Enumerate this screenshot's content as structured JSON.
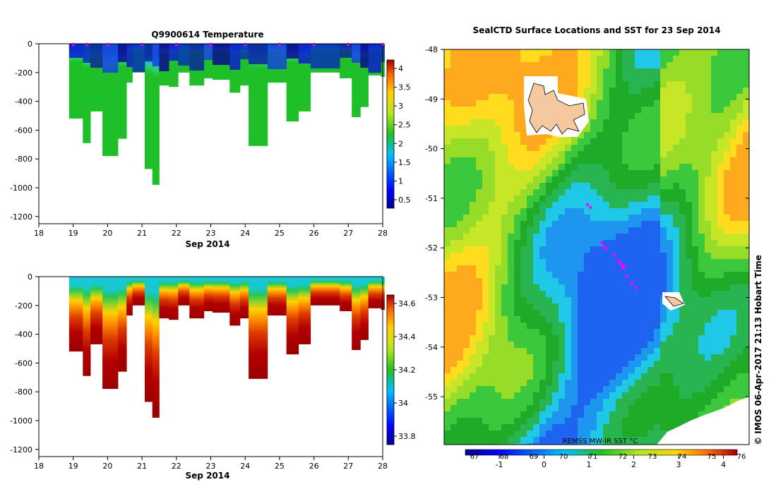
{
  "left_top": {
    "title": "Q9900614  Temperature",
    "xlabel": "Sep 2014",
    "x_ticks": [
      "18",
      "19",
      "20",
      "21",
      "22",
      "23",
      "24",
      "25",
      "26",
      "27",
      "28"
    ],
    "y_ticks": [
      "0",
      "-200",
      "-400",
      "-600",
      "-800",
      "-1000",
      "-1200"
    ],
    "colorbar_ticks": [
      "4",
      "3.5",
      "3",
      "2.5",
      "2",
      "1.5",
      "1",
      "0.5"
    ]
  },
  "left_bottom": {
    "xlabel": "Sep 2014",
    "x_ticks": [
      "18",
      "19",
      "20",
      "21",
      "22",
      "23",
      "24",
      "25",
      "26",
      "27",
      "28"
    ],
    "y_ticks": [
      "0",
      "-200",
      "-400",
      "-600",
      "-800",
      "-1000",
      "-1200"
    ],
    "colorbar_ticks": [
      "34.6",
      "34.4",
      "34.2",
      "34",
      "33.8"
    ]
  },
  "map": {
    "title": "SealCTD Surface Locations and SST for 23 Sep 2014",
    "y_ticks": [
      "-48",
      "-49",
      "-50",
      "-51",
      "-52",
      "-53",
      "-54",
      "-55"
    ],
    "cbar_label": "REMSS MW-IR SST °C",
    "cbar_top_ticks": [
      "67",
      "68",
      "69",
      "70",
      "71",
      "72",
      "73",
      "74",
      "75",
      "76"
    ],
    "cbar_bottom_ticks": [
      "-1",
      "0",
      "1",
      "2",
      "3",
      "4"
    ],
    "credit": "© IMOS 06-Apr-2017 21:13 Hobart Time"
  },
  "chart_data": [
    {
      "type": "heatmap",
      "title": "Q9900614  Temperature",
      "xlabel": "Sep 2014",
      "ylabel": "",
      "xlim": [
        18,
        28
      ],
      "ylim": [
        -1250,
        0
      ],
      "colorbar": {
        "min": 0.5,
        "max": 4.2
      },
      "profiles": [
        {
          "x0": 18.88,
          "x1": 19.28,
          "depth": -520
        },
        {
          "x0": 19.28,
          "x1": 19.5,
          "depth": -690
        },
        {
          "x0": 19.5,
          "x1": 19.85,
          "depth": -470
        },
        {
          "x0": 19.85,
          "x1": 20.3,
          "depth": -780
        },
        {
          "x0": 20.3,
          "x1": 20.55,
          "depth": -660
        },
        {
          "x0": 20.55,
          "x1": 20.72,
          "depth": -270
        },
        {
          "x0": 20.72,
          "x1": 21.08,
          "depth": -200
        },
        {
          "x0": 21.08,
          "x1": 21.3,
          "depth": -870
        },
        {
          "x0": 21.3,
          "x1": 21.5,
          "depth": -980
        },
        {
          "x0": 21.5,
          "x1": 21.78,
          "depth": -290
        },
        {
          "x0": 21.78,
          "x1": 22.05,
          "depth": -300
        },
        {
          "x0": 22.05,
          "x1": 22.38,
          "depth": -200
        },
        {
          "x0": 22.38,
          "x1": 22.8,
          "depth": -290
        },
        {
          "x0": 22.8,
          "x1": 23.05,
          "depth": -240
        },
        {
          "x0": 23.05,
          "x1": 23.55,
          "depth": -250
        },
        {
          "x0": 23.55,
          "x1": 23.85,
          "depth": -340
        },
        {
          "x0": 23.85,
          "x1": 24.1,
          "depth": -290
        },
        {
          "x0": 24.1,
          "x1": 24.65,
          "depth": -710
        },
        {
          "x0": 24.65,
          "x1": 25.2,
          "depth": -270
        },
        {
          "x0": 25.2,
          "x1": 25.55,
          "depth": -540
        },
        {
          "x0": 25.55,
          "x1": 25.9,
          "depth": -470
        },
        {
          "x0": 25.9,
          "x1": 26.75,
          "depth": -200
        },
        {
          "x0": 26.75,
          "x1": 27.1,
          "depth": -240
        },
        {
          "x0": 27.1,
          "x1": 27.35,
          "depth": -510
        },
        {
          "x0": 27.35,
          "x1": 27.58,
          "depth": -440
        },
        {
          "x0": 27.58,
          "x1": 27.95,
          "depth": -220
        },
        {
          "x0": 27.95,
          "x1": 28.05,
          "depth": -230
        }
      ],
      "surface_markers": [
        19,
        19.4,
        20,
        21,
        22,
        23,
        24,
        25,
        26,
        27,
        28
      ]
    },
    {
      "type": "heatmap",
      "title": "",
      "xlabel": "Sep 2014",
      "ylabel": "",
      "xlim": [
        18,
        28
      ],
      "ylim": [
        -1250,
        0
      ],
      "colorbar": {
        "min": 33.65,
        "max": 34.62
      }
    },
    {
      "type": "heatmap",
      "title": "SealCTD Surface Locations and SST for 23 Sep 2014",
      "ylim": [
        -55.9,
        -48
      ],
      "colorbar": {
        "label": "REMSS MW-IR SST °C",
        "min": -1.5,
        "max": 4.8
      },
      "seal_positions": [
        {
          "lat": -51.0,
          "lon": 0.55
        },
        {
          "lat": -51.9,
          "lon": 0.58
        },
        {
          "lat": -52.0,
          "lon": 0.6
        },
        {
          "lat": -52.3,
          "lon": 0.65
        },
        {
          "lat": -52.35,
          "lon": 0.68
        },
        {
          "lat": -52.5,
          "lon": 0.72
        },
        {
          "lat": -52.7,
          "lon": 0.76
        }
      ]
    }
  ]
}
